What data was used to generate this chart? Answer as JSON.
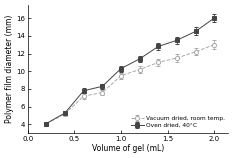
{
  "vacuum_x": [
    0.2,
    0.4,
    0.6,
    0.8,
    1.0,
    1.2,
    1.4,
    1.6,
    1.8,
    2.0
  ],
  "vacuum_y": [
    4.1,
    5.2,
    7.2,
    7.6,
    9.5,
    10.2,
    11.0,
    11.5,
    12.2,
    13.0
  ],
  "vacuum_yerr": [
    0.2,
    0.3,
    0.3,
    0.3,
    0.35,
    0.35,
    0.35,
    0.4,
    0.4,
    0.5
  ],
  "oven_x": [
    0.2,
    0.4,
    0.6,
    0.8,
    1.0,
    1.2,
    1.4,
    1.6,
    1.8,
    2.0
  ],
  "oven_y": [
    4.1,
    5.3,
    7.8,
    8.3,
    10.3,
    11.4,
    12.8,
    13.5,
    14.5,
    16.0
  ],
  "oven_yerr": [
    0.2,
    0.25,
    0.3,
    0.3,
    0.35,
    0.35,
    0.4,
    0.4,
    0.45,
    0.45
  ],
  "xlabel": "Volume of gel (mL)",
  "ylabel": "Polymer film diameter (mm)",
  "xlim": [
    0.0,
    2.15
  ],
  "ylim": [
    3.0,
    17.5
  ],
  "xticks": [
    0.0,
    0.5,
    1.0,
    1.5,
    2.0
  ],
  "yticks": [
    4,
    6,
    8,
    10,
    12,
    14,
    16
  ],
  "legend_vacuum": "Vacuum dried, room temp.",
  "legend_oven": "Oven dried, 40°C",
  "vacuum_color": "#aaaaaa",
  "oven_color": "#444444",
  "background_color": "#ffffff"
}
